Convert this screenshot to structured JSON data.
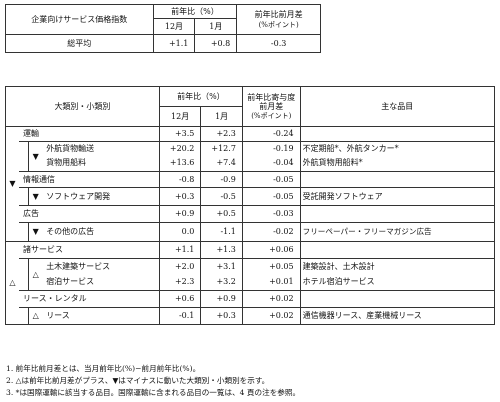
{
  "top_table": {
    "title": "企業向けサービス価格指数",
    "col_group": "前年比（%）",
    "col_dec": "12月",
    "col_jan": "1月",
    "col_diff": "前年比前月差",
    "col_diff_unit": "(%ポイント)",
    "row_label": "総平均",
    "row_dec": "+1.1",
    "row_jan": "+0.8",
    "row_diff": "-0.3"
  },
  "main_table": {
    "h_category": "大類別・小類別",
    "h_yoy": "前年比（%）",
    "h_dec": "12月",
    "h_jan": "1月",
    "h_contrib1": "前年比寄与度",
    "h_contrib2": "前月差",
    "h_contrib_unit": "(%ポイント)",
    "h_items": "主な品目",
    "rows": [
      {
        "label": "運輸",
        "dec": "+3.5",
        "jan": "+2.3",
        "diff": "-0.24",
        "items": ""
      },
      {
        "label": "外航貨物輸送",
        "dec": "+20.2",
        "jan": "+12.7",
        "diff": "-0.19",
        "items": "不定期船*、外航タンカー*"
      },
      {
        "label": "貨物用船料",
        "dec": "+13.6",
        "jan": "+7.4",
        "diff": "-0.04",
        "items": "外航貨物用船料*"
      },
      {
        "label": "情報通信",
        "dec": "-0.8",
        "jan": "-0.9",
        "diff": "-0.05",
        "items": ""
      },
      {
        "label": "ソフトウェア開発",
        "dec": "+0.3",
        "jan": "-0.5",
        "diff": "-0.05",
        "items": "受託開発ソフトウェア"
      },
      {
        "label": "広告",
        "dec": "+0.9",
        "jan": "+0.5",
        "diff": "-0.03",
        "items": ""
      },
      {
        "label": "その他の広告",
        "dec": "0.0",
        "jan": "-1.1",
        "diff": "-0.02",
        "items": "フリーペーパー・フリーマガジン広告"
      },
      {
        "label": "諸サービス",
        "dec": "+1.1",
        "jan": "+1.3",
        "diff": "+0.06",
        "items": ""
      },
      {
        "label": "土木建築サービス",
        "dec": "+2.0",
        "jan": "+3.1",
        "diff": "+0.05",
        "items": "建築設計、土木設計"
      },
      {
        "label": "宿泊サービス",
        "dec": "+2.3",
        "jan": "+3.2",
        "diff": "+0.01",
        "items": "ホテル宿泊サービス"
      },
      {
        "label": "リース・レンタル",
        "dec": "+0.6",
        "jan": "+0.9",
        "diff": "+0.02",
        "items": ""
      },
      {
        "label": "リース",
        "dec": "-0.1",
        "jan": "+0.3",
        "diff": "+0.02",
        "items": "通信機器リース、産業機械リース"
      }
    ],
    "marks": {
      "down": "▼",
      "up": "△"
    }
  },
  "footnotes": [
    "1. 前年比前月差とは、当月前年比(%)−前月前年比(%)。",
    "2. △は前年比前月差がプラス、▼はマイナスに動いた大類別・小類別を示す。",
    "3. *は国際運輸に該当する品目。国際運輸に含まれる品目の一覧は、4 頁の注を参照。"
  ]
}
